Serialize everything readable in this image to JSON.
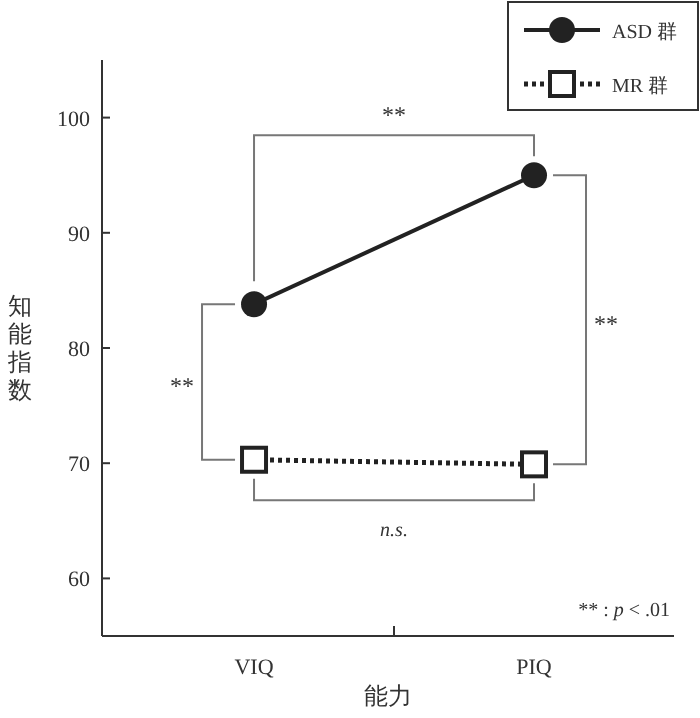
{
  "chart_data": {
    "type": "line",
    "xlabel": "能力",
    "ylabel": "知能指数",
    "categories": [
      "VIQ",
      "PIQ"
    ],
    "series": [
      {
        "name": "ASD 群",
        "color": "#222222",
        "values": [
          83.8,
          95.0
        ],
        "marker": "circle",
        "line_style": "solid"
      },
      {
        "name": "MR 群",
        "color": "#222222",
        "values": [
          70.3,
          69.9
        ],
        "marker": "square",
        "line_style": "dotted"
      }
    ],
    "ylim": [
      55,
      105
    ],
    "yticks": [
      60,
      70,
      80,
      90,
      100
    ],
    "legend": "top right",
    "grid": false,
    "annotations": [
      "**",
      "**",
      "**",
      "*n.s.*",
      "** : *p* < .01"
    ]
  }
}
